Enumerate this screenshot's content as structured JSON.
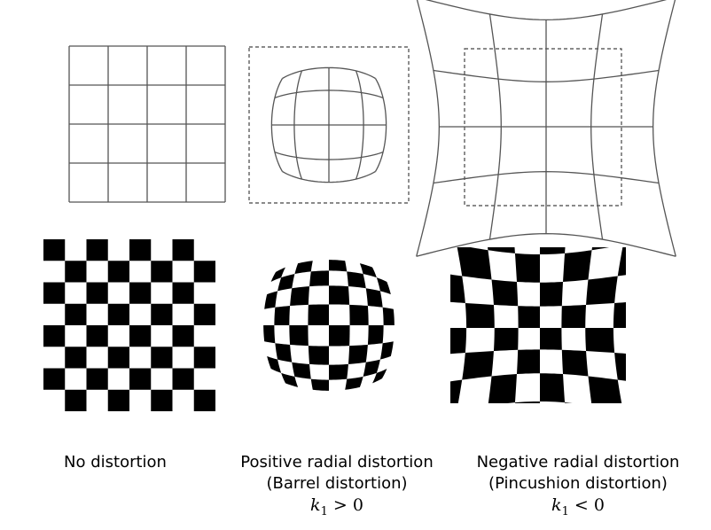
{
  "panels": [
    {
      "id": "none",
      "caption_lines": [
        "No distortion"
      ],
      "k1_symbol": "",
      "k1_relation": "",
      "k1_value": ""
    },
    {
      "id": "barrel",
      "caption_lines": [
        "Positive radial distortion",
        "(Barrel distortion)"
      ],
      "k1_symbol": "k",
      "k1_subscript": "1",
      "k1_relation": ">",
      "k1_value": "0"
    },
    {
      "id": "pincushion",
      "caption_lines": [
        "Negative radial distortion",
        "(Pincushion distortion)"
      ],
      "k1_symbol": "k",
      "k1_subscript": "1",
      "k1_relation": "<",
      "k1_value": "0"
    }
  ],
  "colors": {
    "line": "#555555",
    "dash": "#444444",
    "checker": "#000000",
    "background": "#ffffff"
  }
}
